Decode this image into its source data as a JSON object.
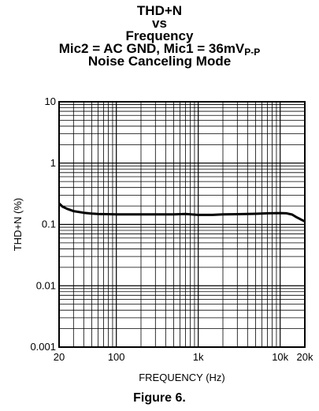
{
  "chart_data": {
    "type": "line",
    "title_lines": [
      "THD+N",
      "vs",
      "Frequency"
    ],
    "title_cond_main": "Mic2 = AC GND, Mic1 = 36mV",
    "title_cond_sub": "P-P",
    "title_mode": "Noise Canceling Mode",
    "xlabel": "FREQUENCY (Hz)",
    "ylabel": "THD+N (%)",
    "x_scale": "log",
    "y_scale": "log",
    "xlim": [
      20,
      20000
    ],
    "ylim": [
      0.001,
      10
    ],
    "x_ticks": [
      {
        "value": 20,
        "label": "20"
      },
      {
        "value": 100,
        "label": "100"
      },
      {
        "value": 1000,
        "label": "1k"
      },
      {
        "value": 10000,
        "label": "10k"
      },
      {
        "value": 20000,
        "label": "20k"
      }
    ],
    "y_ticks": [
      {
        "value": 10,
        "label": "10"
      },
      {
        "value": 1,
        "label": "1"
      },
      {
        "value": 0.1,
        "label": "0.1"
      },
      {
        "value": 0.01,
        "label": "0.01"
      },
      {
        "value": 0.001,
        "label": "0.001"
      }
    ],
    "grid": true,
    "series": [
      {
        "x": [
          20,
          22,
          25,
          30,
          40,
          50,
          60,
          80,
          100,
          150,
          200,
          300,
          500,
          700,
          1000,
          1500,
          2000,
          3000,
          5000,
          7000,
          10000,
          12000,
          14000,
          16000,
          18000,
          20000
        ],
        "y": [
          0.22,
          0.195,
          0.18,
          0.165,
          0.155,
          0.15,
          0.148,
          0.147,
          0.146,
          0.146,
          0.146,
          0.146,
          0.146,
          0.148,
          0.143,
          0.143,
          0.146,
          0.147,
          0.149,
          0.152,
          0.153,
          0.152,
          0.145,
          0.13,
          0.12,
          0.112
        ],
        "color": "#000000"
      }
    ]
  },
  "caption": "Figure 6."
}
